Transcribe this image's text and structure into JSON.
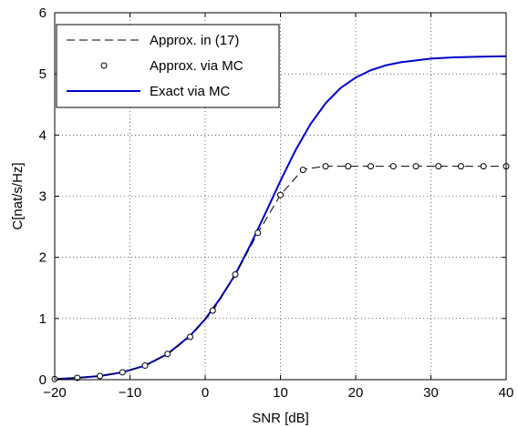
{
  "chart_data": {
    "type": "line",
    "xlabel": "SNR [dB]",
    "ylabel": "C[nat/s/Hz]",
    "xlim": [
      -20,
      40
    ],
    "ylim": [
      0,
      6
    ],
    "xticks": [
      -20,
      -10,
      0,
      10,
      20,
      30,
      40
    ],
    "yticks": [
      0,
      1,
      2,
      3,
      4,
      5,
      6
    ],
    "xtick_labels": [
      "−20",
      "−10",
      "0",
      "10",
      "20",
      "30",
      "40"
    ],
    "ytick_labels": [
      "0",
      "1",
      "2",
      "3",
      "4",
      "5",
      "6"
    ],
    "grid": true,
    "legend_position": "top-left",
    "series": [
      {
        "name": "Approx. in (17)",
        "style": "dashed",
        "color": "#000000",
        "x": [
          -20,
          -17,
          -14,
          -11,
          -8,
          -5,
          -2,
          1,
          4,
          7,
          10,
          13,
          16,
          19,
          22,
          25,
          28,
          31,
          34,
          37,
          40
        ],
        "y": [
          0.01,
          0.03,
          0.06,
          0.12,
          0.23,
          0.42,
          0.7,
          1.12,
          1.71,
          2.4,
          3.02,
          3.44,
          3.49,
          3.49,
          3.49,
          3.49,
          3.49,
          3.49,
          3.49,
          3.49,
          3.49
        ]
      },
      {
        "name": "Approx. via MC",
        "style": "markers",
        "color": "#000000",
        "x": [
          -20,
          -17,
          -14,
          -11,
          -8,
          -5,
          -2,
          1,
          4,
          7,
          10,
          13,
          16,
          19,
          22,
          25,
          28,
          31,
          34,
          37,
          40
        ],
        "y": [
          0.01,
          0.03,
          0.06,
          0.12,
          0.23,
          0.42,
          0.7,
          1.13,
          1.72,
          2.4,
          3.02,
          3.43,
          3.49,
          3.49,
          3.49,
          3.49,
          3.49,
          3.49,
          3.49,
          3.49,
          3.49
        ]
      },
      {
        "name": "Exact via MC",
        "style": "solid",
        "color": "#0000cc",
        "x": [
          -20,
          -17,
          -14,
          -11,
          -8,
          -5,
          -2,
          0,
          2,
          4,
          6,
          8,
          10,
          12,
          14,
          16,
          18,
          20,
          22,
          24,
          26,
          28,
          30,
          33,
          36,
          40
        ],
        "y": [
          0.01,
          0.03,
          0.06,
          0.12,
          0.23,
          0.42,
          0.72,
          0.99,
          1.33,
          1.72,
          2.2,
          2.72,
          3.25,
          3.75,
          4.18,
          4.52,
          4.77,
          4.94,
          5.06,
          5.14,
          5.19,
          5.22,
          5.25,
          5.27,
          5.28,
          5.29
        ]
      }
    ]
  }
}
